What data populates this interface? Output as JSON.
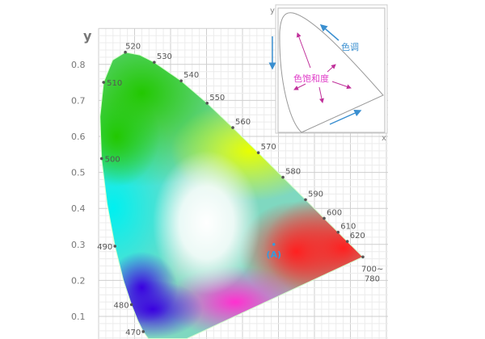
{
  "chart_data": {
    "type": "chromaticity-diagram",
    "y_axis_label": "y",
    "y_ticks": [
      "0.1",
      "0.2",
      "0.3",
      "0.4",
      "0.5",
      "0.6",
      "0.7",
      "0.8"
    ],
    "xlim": [
      0,
      0.8
    ],
    "ylim": [
      0,
      0.86
    ],
    "grid": true,
    "locus": [
      [
        0.1741,
        0.005
      ],
      [
        0.144,
        0.0297
      ],
      [
        0.1241,
        0.0578
      ],
      [
        0.1096,
        0.0868
      ],
      [
        0.0913,
        0.1327
      ],
      [
        0.0687,
        0.2007
      ],
      [
        0.0454,
        0.295
      ],
      [
        0.0235,
        0.4127
      ],
      [
        0.0082,
        0.5384
      ],
      [
        0.0039,
        0.6548
      ],
      [
        0.0139,
        0.7502
      ],
      [
        0.0389,
        0.812
      ],
      [
        0.0743,
        0.8338
      ],
      [
        0.1142,
        0.8262
      ],
      [
        0.1547,
        0.8059
      ],
      [
        0.2296,
        0.7543
      ],
      [
        0.3016,
        0.6923
      ],
      [
        0.3731,
        0.6245
      ],
      [
        0.4441,
        0.5547
      ],
      [
        0.5125,
        0.4866
      ],
      [
        0.5752,
        0.4242
      ],
      [
        0.627,
        0.3725
      ],
      [
        0.6658,
        0.334
      ],
      [
        0.6915,
        0.3083
      ],
      [
        0.7347,
        0.2653
      ]
    ],
    "wavelength_marks": [
      {
        "label": "470",
        "x": 0.1241,
        "y": 0.0578
      },
      {
        "label": "480",
        "x": 0.0913,
        "y": 0.1327
      },
      {
        "label": "490",
        "x": 0.0454,
        "y": 0.295
      },
      {
        "label": "500",
        "x": 0.0082,
        "y": 0.5384
      },
      {
        "label": "510",
        "x": 0.0139,
        "y": 0.7502
      },
      {
        "label": "520",
        "x": 0.0743,
        "y": 0.8338
      },
      {
        "label": "530",
        "x": 0.1547,
        "y": 0.8059
      },
      {
        "label": "540",
        "x": 0.2296,
        "y": 0.7543
      },
      {
        "label": "550",
        "x": 0.3016,
        "y": 0.6923
      },
      {
        "label": "560",
        "x": 0.3731,
        "y": 0.6245
      },
      {
        "label": "570",
        "x": 0.4441,
        "y": 0.5547
      },
      {
        "label": "580",
        "x": 0.5125,
        "y": 0.4866
      },
      {
        "label": "590",
        "x": 0.5752,
        "y": 0.4242
      },
      {
        "label": "600",
        "x": 0.627,
        "y": 0.3725
      },
      {
        "label": "610",
        "x": 0.6658,
        "y": 0.334
      },
      {
        "label": "620",
        "x": 0.6915,
        "y": 0.3083
      },
      {
        "label": "700~",
        "label2": "780",
        "x": 0.7347,
        "y": 0.2653
      }
    ],
    "point": {
      "label": "(A)",
      "x": 0.487,
      "y": 0.3,
      "color": "#3a9ad9"
    }
  },
  "inset": {
    "y_label": "y",
    "x_label": "x",
    "hue_label": "色调",
    "saturation_label": "色饱和度",
    "hue_color": "#3a8fd0",
    "saturation_color": "#e03cc8"
  }
}
